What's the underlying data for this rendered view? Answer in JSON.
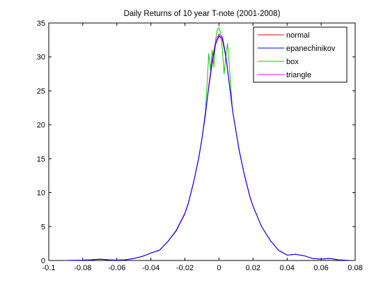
{
  "chart_data": {
    "type": "line",
    "title": "Daily Returns of 10 year T-note (2001-2008)",
    "xlabel": "",
    "ylabel": "",
    "xlim": [
      -0.1,
      0.08
    ],
    "ylim": [
      0,
      35
    ],
    "xticks": [
      -0.1,
      -0.08,
      -0.06,
      -0.04,
      -0.02,
      0,
      0.02,
      0.04,
      0.06,
      0.08
    ],
    "xtick_labels": [
      "-0.1",
      "-0.08",
      "-0.06",
      "-0.04",
      "-0.02",
      "0",
      "0.02",
      "0.04",
      "0.06",
      "0.08"
    ],
    "yticks": [
      0,
      5,
      10,
      15,
      20,
      25,
      30,
      35
    ],
    "ytick_labels": [
      "0",
      "5",
      "10",
      "15",
      "20",
      "25",
      "30",
      "35"
    ],
    "grid": false,
    "legend_position": "top-right",
    "series": [
      {
        "name": "normal",
        "color": "#ff0000",
        "x": [
          -0.09,
          -0.08,
          -0.075,
          -0.07,
          -0.065,
          -0.06,
          -0.055,
          -0.05,
          -0.045,
          -0.04,
          -0.035,
          -0.03,
          -0.025,
          -0.02,
          -0.018,
          -0.015,
          -0.012,
          -0.01,
          -0.008,
          -0.006,
          -0.004,
          -0.002,
          0,
          0.002,
          0.004,
          0.006,
          0.008,
          0.01,
          0.012,
          0.015,
          0.018,
          0.02,
          0.025,
          0.03,
          0.035,
          0.04,
          0.045,
          0.05,
          0.055,
          0.06,
          0.065,
          0.07,
          0.077
        ],
        "y": [
          0.0,
          0.05,
          0.1,
          0.2,
          0.1,
          0.05,
          0.1,
          0.3,
          0.6,
          1.1,
          1.5,
          2.8,
          4.5,
          7.0,
          8.5,
          11.5,
          15.0,
          18.0,
          21.5,
          25.5,
          29.0,
          31.8,
          33.2,
          32.5,
          30.0,
          26.0,
          22.0,
          19.0,
          16.0,
          12.5,
          9.5,
          8.0,
          5.0,
          3.0,
          1.5,
          0.8,
          0.9,
          0.7,
          0.3,
          0.2,
          0.3,
          0.1,
          0.0
        ]
      },
      {
        "name": "epanechinikov",
        "color": "#0000ff",
        "x": [
          -0.09,
          -0.08,
          -0.075,
          -0.07,
          -0.065,
          -0.06,
          -0.055,
          -0.05,
          -0.045,
          -0.04,
          -0.035,
          -0.03,
          -0.025,
          -0.02,
          -0.018,
          -0.015,
          -0.012,
          -0.01,
          -0.008,
          -0.006,
          -0.004,
          -0.002,
          0,
          0.002,
          0.004,
          0.006,
          0.008,
          0.01,
          0.012,
          0.015,
          0.018,
          0.02,
          0.025,
          0.03,
          0.035,
          0.04,
          0.045,
          0.05,
          0.055,
          0.06,
          0.065,
          0.07,
          0.077
        ],
        "y": [
          0.0,
          0.04,
          0.1,
          0.18,
          0.1,
          0.05,
          0.1,
          0.3,
          0.6,
          1.1,
          1.5,
          2.8,
          4.4,
          6.9,
          8.4,
          11.4,
          14.9,
          17.9,
          21.4,
          25.6,
          29.3,
          32.0,
          33.0,
          32.8,
          30.2,
          26.2,
          22.1,
          19.1,
          16.1,
          12.6,
          9.6,
          8.0,
          5.0,
          3.0,
          1.5,
          0.8,
          0.9,
          0.7,
          0.3,
          0.2,
          0.3,
          0.1,
          0.0
        ]
      },
      {
        "name": "box",
        "color": "#00cc00",
        "x": [
          -0.09,
          -0.08,
          -0.075,
          -0.07,
          -0.065,
          -0.06,
          -0.055,
          -0.05,
          -0.045,
          -0.04,
          -0.035,
          -0.03,
          -0.025,
          -0.02,
          -0.018,
          -0.015,
          -0.012,
          -0.01,
          -0.008,
          -0.007,
          -0.006,
          -0.005,
          -0.004,
          -0.003,
          -0.002,
          -0.001,
          0,
          0.001,
          0.002,
          0.003,
          0.004,
          0.005,
          0.006,
          0.008,
          0.01,
          0.012,
          0.015,
          0.018,
          0.02,
          0.025,
          0.03,
          0.035,
          0.04,
          0.045,
          0.05,
          0.055,
          0.06,
          0.065,
          0.07,
          0.077
        ],
        "y": [
          0.0,
          0.05,
          0.1,
          0.2,
          0.1,
          0.05,
          0.1,
          0.3,
          0.6,
          1.1,
          1.5,
          2.8,
          4.5,
          7.0,
          8.5,
          11.5,
          15.0,
          18.0,
          22.0,
          26.0,
          30.5,
          28.0,
          31.0,
          28.5,
          32.5,
          34.0,
          34.3,
          33.5,
          31.0,
          27.5,
          30.0,
          32.0,
          29.0,
          22.0,
          19.0,
          16.0,
          12.5,
          9.5,
          8.0,
          5.0,
          3.0,
          1.5,
          0.8,
          0.9,
          0.7,
          0.3,
          0.2,
          0.3,
          0.1,
          0.0
        ]
      },
      {
        "name": "triangle",
        "color": "#ff00ff",
        "x": [
          -0.09,
          -0.08,
          -0.075,
          -0.07,
          -0.065,
          -0.06,
          -0.055,
          -0.05,
          -0.045,
          -0.04,
          -0.035,
          -0.03,
          -0.025,
          -0.02,
          -0.018,
          -0.015,
          -0.012,
          -0.01,
          -0.008,
          -0.006,
          -0.004,
          -0.002,
          0,
          0.002,
          0.004,
          0.006,
          0.008,
          0.01,
          0.012,
          0.015,
          0.018,
          0.02,
          0.025,
          0.03,
          0.035,
          0.04,
          0.045,
          0.05,
          0.055,
          0.06,
          0.065,
          0.07,
          0.077
        ],
        "y": [
          0.0,
          0.05,
          0.1,
          0.2,
          0.1,
          0.05,
          0.1,
          0.3,
          0.6,
          1.1,
          1.5,
          2.8,
          4.5,
          7.0,
          8.5,
          11.5,
          15.0,
          18.0,
          21.6,
          25.8,
          29.6,
          32.3,
          33.4,
          33.0,
          30.3,
          26.2,
          22.0,
          19.0,
          16.0,
          12.5,
          9.5,
          8.0,
          5.0,
          3.0,
          1.5,
          0.8,
          0.9,
          0.7,
          0.3,
          0.2,
          0.3,
          0.1,
          0.0
        ]
      }
    ]
  }
}
